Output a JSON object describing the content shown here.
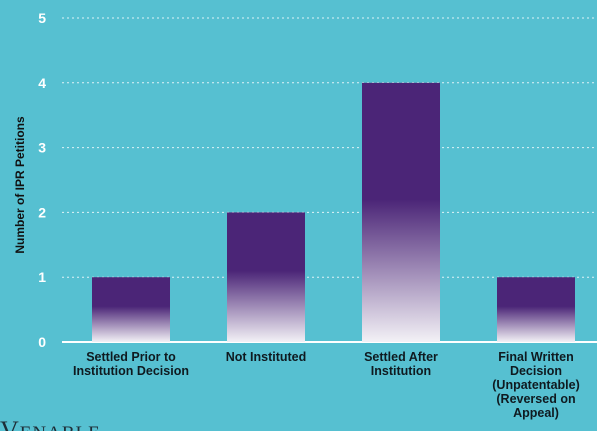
{
  "chart_data": {
    "type": "bar",
    "ylabel": "Number of IPR Petitions",
    "ylim": [
      0,
      5
    ],
    "yticks": [
      0,
      1,
      2,
      3,
      4,
      5
    ],
    "grid": "horizontal dashed",
    "categories": [
      [
        "Settled Prior to",
        "Institution Decision"
      ],
      [
        "Not Instituted"
      ],
      [
        "Settled After",
        "Institution"
      ],
      [
        "Final Written",
        "Decision",
        "(Unpatentable)",
        "(Reversed on",
        "Appeal)"
      ]
    ],
    "values": [
      1,
      2,
      4,
      1
    ],
    "colors": {
      "bar_top": "#4b2577",
      "bar_bottom": "#f3f1f6",
      "grid": "#dff3f7",
      "axis": "#ffffff"
    }
  },
  "logo": {
    "text": "VENABLE"
  }
}
